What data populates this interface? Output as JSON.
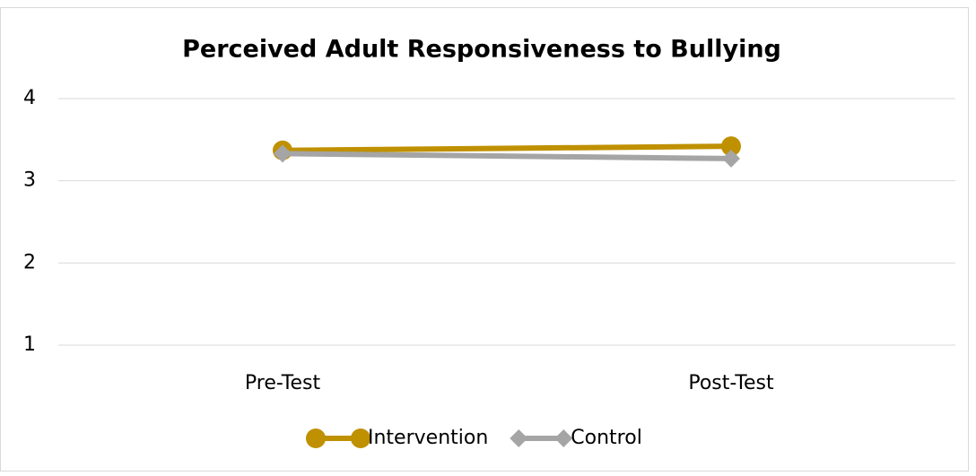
{
  "chart_data": {
    "type": "line",
    "title": "Perceived Adult Responsiveness to Bullying",
    "categories": [
      "Pre-Test",
      "Post-Test"
    ],
    "series": [
      {
        "name": "Intervention",
        "color": "#bf9000",
        "marker": "circle",
        "values": [
          3.37,
          3.42
        ]
      },
      {
        "name": "Control",
        "color": "#a5a5a5",
        "marker": "diamond",
        "values": [
          3.33,
          3.27
        ]
      }
    ],
    "ylim": [
      1,
      4
    ],
    "yticks": [
      1,
      2,
      3,
      4
    ],
    "grid": true,
    "legend": "bottom"
  }
}
